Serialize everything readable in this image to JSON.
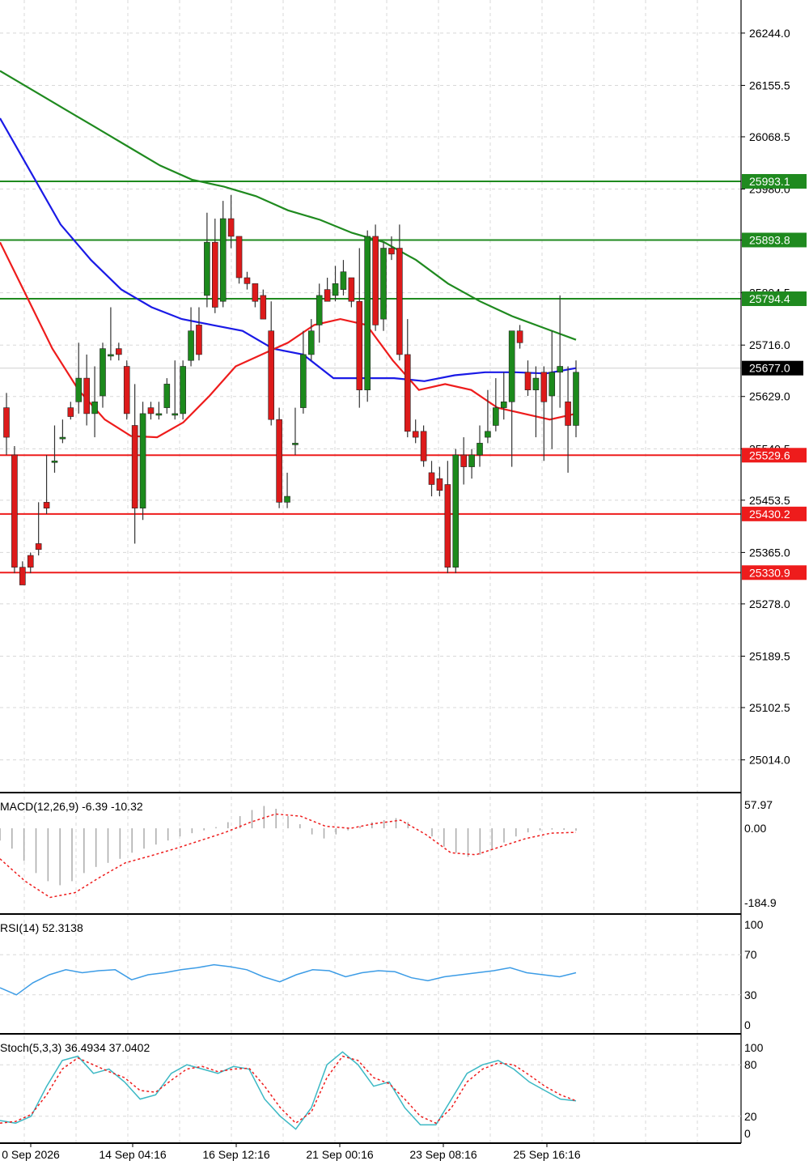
{
  "chart_data": {
    "type": "candlestick",
    "price_ticks": [
      "26244.0",
      "26155.5",
      "26068.5",
      "25980.0",
      "25893.8",
      "25804.5",
      "25716.0",
      "25629.0",
      "25540.5",
      "25453.5",
      "25365.0",
      "25278.0",
      "25189.5",
      "25102.5",
      "25014.0"
    ],
    "price_range": [
      24960,
      26300
    ],
    "current_price": "25677.0",
    "resistance_levels": [
      "25993.1",
      "25893.8",
      "25794.4"
    ],
    "support_levels": [
      "25529.6",
      "25430.2",
      "25330.9"
    ],
    "time_labels": [
      "0 Sep 2026",
      "14 Sep 04:16",
      "16 Sep 12:16",
      "21 Sep 00:16",
      "23 Sep 08:16",
      "25 Sep 16:16"
    ],
    "candles": [
      [
        25610,
        25635,
        25560,
        25530
      ],
      [
        25530,
        25545,
        25340,
        25330
      ],
      [
        25340,
        25350,
        25310,
        25320
      ],
      [
        25360,
        25365,
        25340,
        25330
      ],
      [
        25380,
        25450,
        25370,
        25360
      ],
      [
        25450,
        25530,
        25440,
        25430
      ],
      [
        25520,
        25580,
        25520,
        25500
      ],
      [
        25560,
        25590,
        25560,
        25550
      ],
      [
        25610,
        25620,
        25595,
        25590
      ],
      [
        25620,
        25720,
        25660,
        25600
      ],
      [
        25660,
        25700,
        25600,
        25580
      ],
      [
        25600,
        25680,
        25620,
        25560
      ],
      [
        25630,
        25720,
        25710,
        25610
      ],
      [
        25700,
        25780,
        25700,
        25690
      ],
      [
        25710,
        25720,
        25700,
        25690
      ],
      [
        25680,
        25690,
        25600,
        25590
      ],
      [
        25580,
        25650,
        25440,
        25380
      ],
      [
        25440,
        25620,
        25600,
        25420
      ],
      [
        25610,
        25620,
        25600,
        25590
      ],
      [
        25600,
        25620,
        25600,
        25590
      ],
      [
        25610,
        25660,
        25650,
        25600
      ],
      [
        25600,
        25690,
        25600,
        25590
      ],
      [
        25600,
        25690,
        25680,
        25590
      ],
      [
        25690,
        25780,
        25740,
        25680
      ],
      [
        25750,
        25780,
        25700,
        25690
      ],
      [
        25800,
        25940,
        25890,
        25780
      ],
      [
        25890,
        25930,
        25780,
        25770
      ],
      [
        25790,
        25960,
        25930,
        25780
      ],
      [
        25930,
        25970,
        25900,
        25880
      ],
      [
        25900,
        25880,
        25830,
        25820
      ],
      [
        25830,
        25840,
        25820,
        25810
      ],
      [
        25820,
        25820,
        25790,
        25780
      ],
      [
        25800,
        25810,
        25760,
        25760
      ],
      [
        25740,
        25790,
        25590,
        25580
      ],
      [
        25590,
        25610,
        25450,
        25440
      ],
      [
        25450,
        25500,
        25460,
        25440
      ],
      [
        25550,
        25610,
        25550,
        25530
      ],
      [
        25610,
        25740,
        25700,
        25600
      ],
      [
        25700,
        25760,
        25740,
        25690
      ],
      [
        25750,
        25820,
        25800,
        25720
      ],
      [
        25810,
        25830,
        25790,
        25790
      ],
      [
        25800,
        25850,
        25820,
        25790
      ],
      [
        25810,
        25860,
        25840,
        25800
      ],
      [
        25830,
        25820,
        25790,
        25780
      ],
      [
        25790,
        25880,
        25640,
        25610
      ],
      [
        25640,
        25910,
        25900,
        25620
      ],
      [
        25900,
        25920,
        25750,
        25740
      ],
      [
        25760,
        25890,
        25880,
        25740
      ],
      [
        25880,
        25900,
        25870,
        25860
      ],
      [
        25880,
        25920,
        25700,
        25690
      ],
      [
        25700,
        25760,
        25570,
        25560
      ],
      [
        25570,
        25590,
        25560,
        25550
      ],
      [
        25570,
        25580,
        25520,
        25510
      ],
      [
        25500,
        25520,
        25480,
        25460
      ],
      [
        25490,
        25510,
        25470,
        25460
      ],
      [
        25480,
        25520,
        25340,
        25330
      ],
      [
        25340,
        25540,
        25530,
        25330
      ],
      [
        25530,
        25560,
        25510,
        25480
      ],
      [
        25510,
        25540,
        25530,
        25490
      ],
      [
        25530,
        25580,
        25550,
        25510
      ],
      [
        25560,
        25640,
        25570,
        25550
      ],
      [
        25580,
        25660,
        25610,
        25570
      ],
      [
        25610,
        25670,
        25620,
        25590
      ],
      [
        25620,
        25740,
        25740,
        25510
      ],
      [
        25740,
        25750,
        25720,
        25710
      ],
      [
        25670,
        25690,
        25640,
        25630
      ],
      [
        25640,
        25680,
        25660,
        25560
      ],
      [
        25670,
        25680,
        25620,
        25520
      ],
      [
        25630,
        25740,
        25670,
        25540
      ],
      [
        25670,
        25800,
        25680,
        25610
      ],
      [
        25620,
        25680,
        25580,
        25500
      ],
      [
        25580,
        25690,
        25670,
        25560
      ]
    ],
    "ma_slow": [
      26180,
      26148,
      26116,
      26084,
      26052,
      26020,
      25996,
      25984,
      25968,
      25944,
      25928,
      25906,
      25890,
      25860,
      25820,
      25790,
      25765,
      25745,
      25725
    ],
    "ma_mid": [
      26100,
      26010,
      25920,
      25860,
      25810,
      25780,
      25760,
      25750,
      25740,
      25710,
      25700,
      25660,
      25660,
      25660,
      25655,
      25665,
      25670,
      25670,
      25668,
      25677
    ],
    "ma_fast": [
      25890,
      25800,
      25710,
      25640,
      25590,
      25562,
      25560,
      25585,
      25630,
      25680,
      25700,
      25720,
      25750,
      25760,
      25750,
      25690,
      25640,
      25650,
      25640,
      25610,
      25600,
      25590,
      25600
    ],
    "macd": {
      "label": "MACD(12,26,9) -6.39 -10.32",
      "ticks": [
        "57.97",
        "0.00",
        "-184.9"
      ],
      "range": [
        -184.9,
        57.97
      ],
      "hist": [
        -30,
        -50,
        -80,
        -110,
        -130,
        -140,
        -130,
        -110,
        -95,
        -85,
        -75,
        -60,
        -50,
        -40,
        -30,
        -20,
        -12,
        -5,
        3,
        15,
        30,
        45,
        55,
        48,
        30,
        10,
        -15,
        -25,
        -15,
        -5,
        5,
        15,
        20,
        25,
        15,
        0,
        -20,
        -45,
        -60,
        -70,
        -65,
        -50,
        -35,
        -20,
        -10,
        -5,
        -3,
        -4,
        -6
      ],
      "signal": [
        -75,
        -130,
        -170,
        -158,
        -120,
        -85,
        -68,
        -50,
        -30,
        -10,
        15,
        35,
        30,
        5,
        0,
        12,
        20,
        -15,
        -60,
        -65,
        -45,
        -25,
        -12,
        -10
      ]
    },
    "rsi": {
      "label": "RSI(14) 52.3138",
      "ticks": [
        "100",
        "70",
        "30",
        "0"
      ],
      "values": [
        37,
        30,
        42,
        50,
        55,
        52,
        54,
        55,
        45,
        50,
        52,
        55,
        57,
        60,
        58,
        55,
        48,
        43,
        50,
        55,
        54,
        48,
        52,
        54,
        53,
        47,
        44,
        48,
        50,
        52,
        54,
        57,
        52,
        50,
        48,
        52
      ]
    },
    "stoch": {
      "label": "Stoch(5,3,3) 36.4934 37.0402",
      "ticks": [
        "100",
        "80",
        "20",
        "0"
      ],
      "k": [
        15,
        12,
        20,
        55,
        85,
        90,
        70,
        75,
        60,
        40,
        45,
        70,
        80,
        75,
        70,
        78,
        75,
        40,
        20,
        5,
        30,
        80,
        95,
        80,
        55,
        60,
        30,
        10,
        10,
        40,
        70,
        80,
        85,
        75,
        60,
        50,
        40,
        38
      ],
      "d": [
        12,
        14,
        22,
        45,
        75,
        88,
        80,
        72,
        65,
        50,
        48,
        62,
        75,
        78,
        72,
        75,
        76,
        55,
        30,
        12,
        25,
        65,
        90,
        85,
        65,
        58,
        40,
        20,
        12,
        30,
        60,
        75,
        82,
        80,
        68,
        55,
        45,
        38
      ]
    }
  }
}
